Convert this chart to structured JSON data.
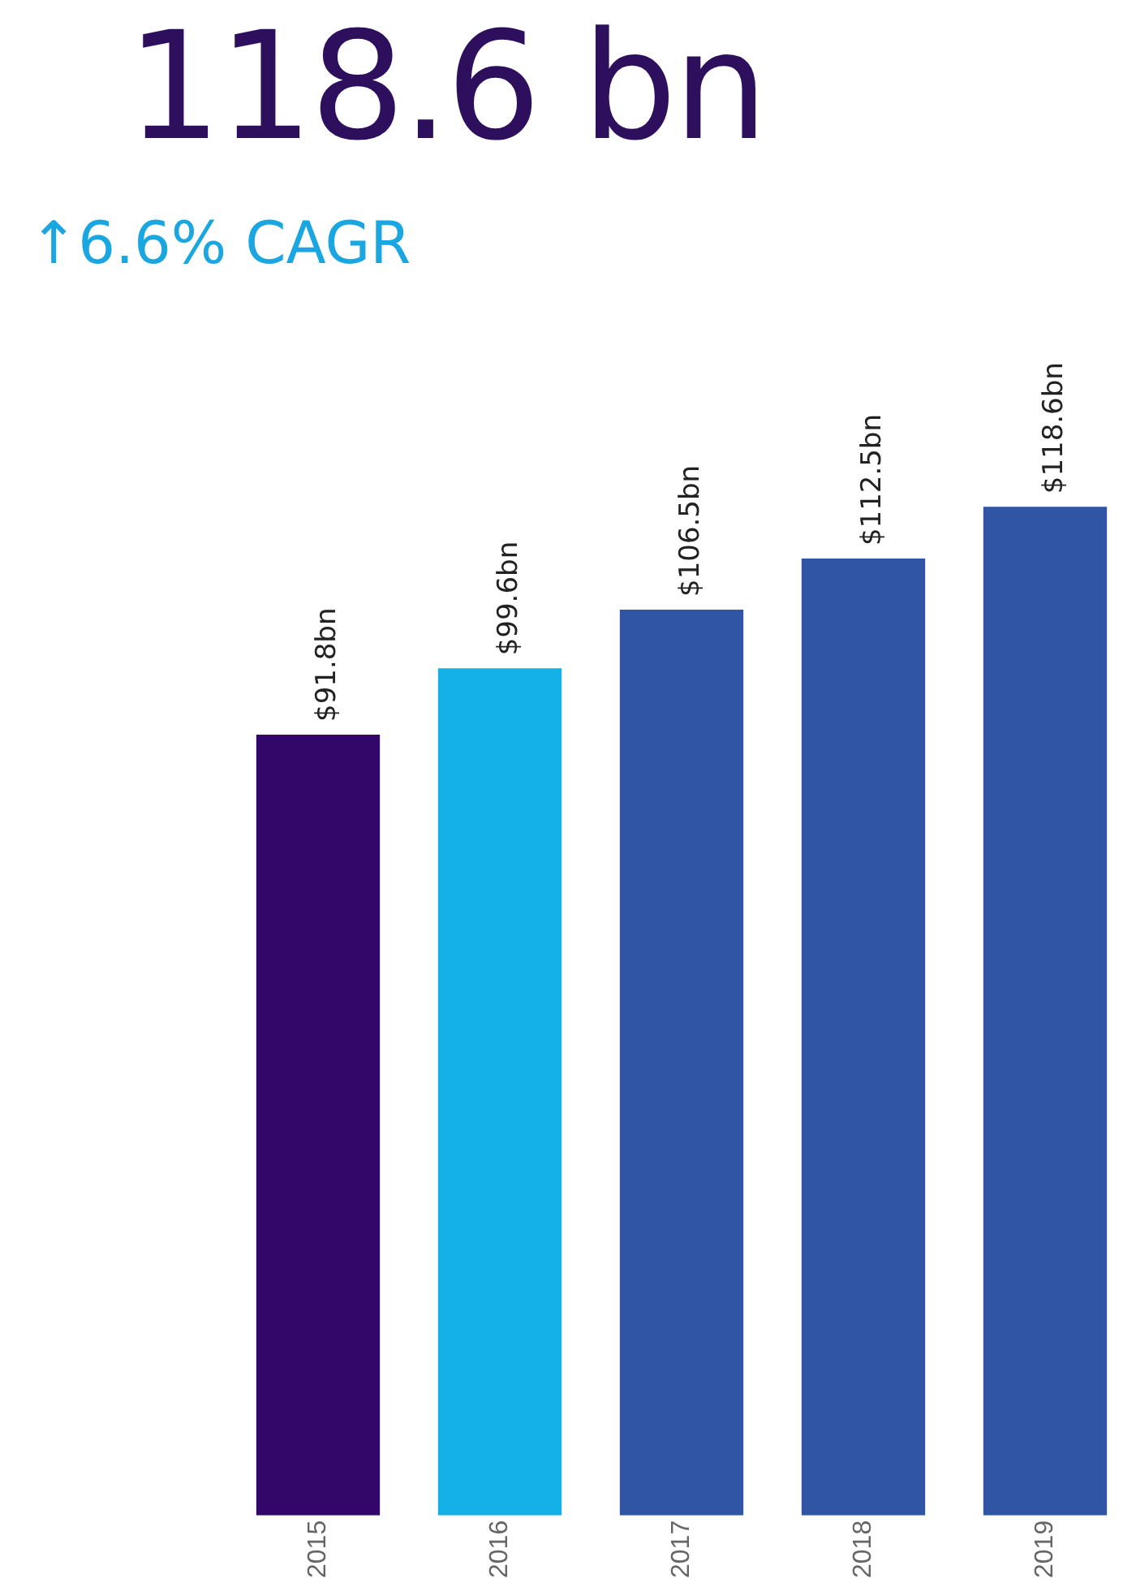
{
  "chart_data": {
    "type": "bar",
    "title": "118.6 bn",
    "subtitle": "↑6.6% CAGR",
    "categories": [
      "2015",
      "2016",
      "2017",
      "2018",
      "2019"
    ],
    "values": [
      91.8,
      99.6,
      106.5,
      112.5,
      118.6
    ],
    "colors": [
      "#33076a",
      "#14b0e8",
      "#2f55a4",
      "#2f55a4",
      "#2f55a4"
    ],
    "value_labels": [
      "$91.8bn",
      "$99.6bn",
      "$106.5bn",
      "$112.5bn",
      "$118.6bn"
    ],
    "grid": false,
    "legend": false
  }
}
